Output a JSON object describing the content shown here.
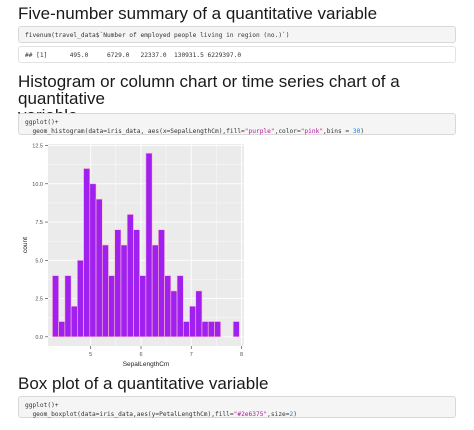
{
  "sections": {
    "five_number": {
      "title": "Five-number summary of a quantitative variable",
      "code": "fivenum(travel_data$`Number of employed people living in region (no.)`)",
      "output": "## [1]      495.0     6729.0   22337.0  130931.5 6229397.0"
    },
    "histogram": {
      "title_line1": "Histogram or column chart or time series chart of a quantitative",
      "title_line2": "variable",
      "code_line1": "ggplot()+",
      "code_line2_pre": "  geom_histogram(data=iris_data, aes(x=SepalLengthCm),fill=",
      "code_fill": "\"purple\"",
      "code_mid": ",color=",
      "code_color": "\"pink\"",
      "code_bins_pre": ",bins = ",
      "code_bins": "30",
      "code_end": ")"
    },
    "boxplot": {
      "title": "Box plot of a quantitative variable",
      "code_line1": "ggplot()+",
      "code_line2_pre": "  geom_boxplot(data=iris_data,aes(y=PetalLengthCm),fill=",
      "code_fill": "\"#2e6375\"",
      "code_size_pre": ",size=",
      "code_size": "2",
      "code_end": ")"
    }
  },
  "colors": {
    "bar_fill": "#a020f0",
    "bar_stroke": "#ffc0cb",
    "panel_bg": "#ebebeb",
    "grid": "#ffffff"
  },
  "chart_data": {
    "type": "bar",
    "xlabel": "SepalLengthCm",
    "ylabel": "count",
    "xlim": [
      4.15,
      8.05
    ],
    "ylim": [
      -0.6,
      12.6
    ],
    "xticks": [
      5,
      6,
      7,
      8
    ],
    "yticks": [
      0.0,
      2.5,
      5.0,
      7.5,
      10.0,
      12.5
    ],
    "ytick_labels": [
      "0.0",
      "2.5",
      "5.0",
      "7.5",
      "10.0",
      "12.5"
    ],
    "xtick_labels": [
      "5",
      "6",
      "7",
      "8"
    ],
    "bin_width": 0.124,
    "bin_starts": [
      4.238,
      4.362,
      4.486,
      4.61,
      4.734,
      4.858,
      4.982,
      5.106,
      5.23,
      5.354,
      5.478,
      5.602,
      5.726,
      5.85,
      5.974,
      6.098,
      6.222,
      6.346,
      6.47,
      6.594,
      6.718,
      6.842,
      6.966,
      7.09,
      7.214,
      7.338,
      7.462,
      7.586,
      7.71,
      7.834
    ],
    "values": [
      4,
      1,
      4,
      2,
      5,
      11,
      10,
      9,
      6,
      4,
      7,
      6,
      8,
      7,
      4,
      12,
      6,
      7,
      4,
      3,
      4,
      1,
      2,
      3,
      1,
      1,
      1,
      0,
      0,
      1
    ]
  }
}
